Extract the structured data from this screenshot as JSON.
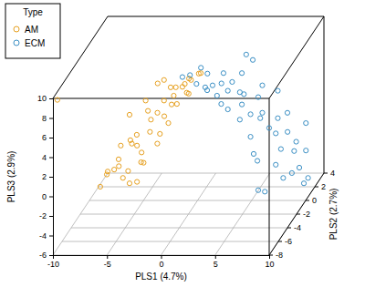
{
  "chart_data": {
    "type": "scatter3d",
    "x_label": "PLS1 (4.7%)",
    "y_label": "PLS2 (2.7%)",
    "z_label": "PLS3 (2.9%)",
    "legend_title": "Type",
    "legend": "top-left",
    "grid": true,
    "xlim": [
      -10,
      10
    ],
    "xticks": [
      -10,
      -5,
      0,
      5,
      10
    ],
    "ylim": [
      -8,
      4
    ],
    "yticks": [
      -8,
      -6,
      -4,
      -2,
      0,
      2,
      4
    ],
    "zlim": [
      -6,
      10
    ],
    "zticks": [
      -6,
      -4,
      -2,
      0,
      2,
      4,
      6,
      8,
      10
    ],
    "series": [
      {
        "name": "AM",
        "color": "#e6a020",
        "marker": "circle",
        "x": [
          -6.5,
          -6.0,
          -5.6,
          -6.5,
          -5.2,
          -4.8,
          -7.3,
          -8.1,
          -7.7,
          -6.9,
          -8.6,
          -6.0,
          -4.4,
          -3.9,
          -3.5,
          -3.1,
          -2.7,
          -4.8,
          -5.6,
          -6.5,
          -2.2,
          -3.5,
          -4.1,
          -1.4,
          -1.0,
          -1.8,
          -0.6,
          -1.6,
          -2.4,
          -3.3,
          -5.2,
          -7.1,
          -7.5,
          -9.0,
          -5.6,
          -2.7,
          -1.7,
          -1.0,
          -0.1,
          0.3,
          -0.4,
          -4.8,
          -3.9,
          -3.1,
          -9.8
        ],
        "y": [
          0.5,
          -0.5,
          0,
          1,
          -1,
          0.5,
          0,
          -0.5,
          1,
          0,
          0.5,
          -1,
          0,
          1,
          -0.5,
          0,
          0.5,
          -1,
          0,
          0.5,
          0,
          1,
          -0.5,
          0,
          0.5,
          -0.5,
          0,
          1,
          0,
          -1,
          0.5,
          0,
          -0.5,
          0,
          1,
          0,
          -0.5,
          0,
          0.5,
          0,
          -1,
          0,
          0.5,
          0,
          -7.5
        ],
        "z": [
          2.4,
          0.5,
          -0.4,
          -0.9,
          1.4,
          2.8,
          -1.8,
          -2.7,
          -3.2,
          -3.7,
          -3.7,
          -2.3,
          1.0,
          0.1,
          3.3,
          4.2,
          5.2,
          -1.4,
          -4.1,
          -4.6,
          4.7,
          1.9,
          2.6,
          5.6,
          6.1,
          5.9,
          6.3,
          5.2,
          3.8,
          0.5,
          -2.5,
          -0.4,
          -2.5,
          -4.6,
          -1.8,
          1.9,
          4.2,
          5.0,
          6.6,
          7.0,
          5.6,
          4.2,
          5.6,
          6.3,
          9.5
        ]
      },
      {
        "name": "ECM",
        "color": "#3b8fc4",
        "marker": "circle",
        "x": [
          -1.4,
          0.7,
          1.1,
          -0.1,
          0.5,
          1.8,
          1.6,
          2.4,
          2.0,
          2.8,
          2.4,
          3.2,
          3.7,
          4.1,
          4.5,
          4.9,
          5.4,
          5.8,
          6.2,
          4.1,
          4.9,
          4.5,
          6.2,
          2.8,
          3.7,
          4.9,
          5.4,
          -0.7,
          0.1,
          6.2,
          6.6,
          7.0,
          7.5,
          7.9,
          8.3,
          8.7,
          9.2,
          9.6,
          9.8,
          9.2,
          8.3,
          5.4,
          5.8,
          6.6,
          7.0,
          8.1,
          9.6,
          7.5,
          4.9
        ],
        "y": [
          0,
          0.5,
          -0.5,
          0,
          0.5,
          0,
          -0.5,
          0,
          0.5,
          0,
          -0.5,
          0,
          0.5,
          0,
          -0.5,
          0,
          0.5,
          0,
          -0.5,
          0,
          0.5,
          0,
          -0.5,
          0,
          0.5,
          0,
          -0.5,
          0,
          0.5,
          1,
          1.5,
          1,
          0.5,
          1,
          1.5,
          1,
          0.5,
          1,
          1,
          1.5,
          1,
          0.5,
          1,
          1.5,
          1,
          0.5,
          1,
          1,
          1.5
        ],
        "z": [
          6.6,
          6.6,
          5.6,
          5.9,
          5.2,
          4.7,
          6.1,
          7.0,
          5.6,
          5.2,
          4.2,
          6.1,
          4.7,
          3.8,
          5.2,
          2.8,
          4.2,
          2.4,
          3.3,
          7.0,
          8.0,
          8.9,
          6.1,
          3.3,
          1.9,
          0.5,
          -0.9,
          6.8,
          7.2,
          0.7,
          -0.2,
          1.7,
          -1.1,
          0.3,
          -2.0,
          -0.7,
          -3.0,
          -1.6,
          -4.4,
          -5.3,
          -3.9,
          -5.3,
          -5.8,
          -3.4,
          4.5,
          2.6,
          1.2,
          -4.4,
          -3.0
        ]
      }
    ]
  }
}
